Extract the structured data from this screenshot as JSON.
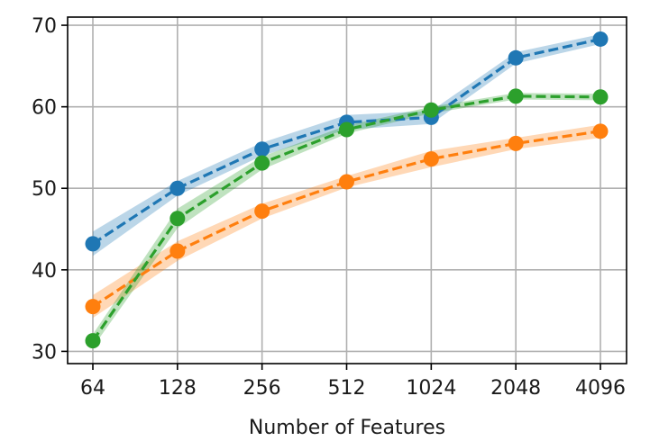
{
  "chart_data": {
    "type": "line",
    "title": "",
    "xlabel": "Number of Features",
    "ylabel": "",
    "categories": [
      "64",
      "128",
      "256",
      "512",
      "1024",
      "2048",
      "4096"
    ],
    "ylim": [
      28.5,
      71
    ],
    "yticks": [
      30,
      40,
      50,
      60,
      70
    ],
    "grid": true,
    "legend": "none",
    "series": [
      {
        "color": "#1f77b4",
        "values": [
          43.2,
          50.0,
          54.8,
          58.1,
          58.7,
          66.0,
          68.3
        ],
        "band": [
          1.5,
          0.9,
          0.8,
          0.9,
          0.8,
          0.7,
          0.6
        ]
      },
      {
        "color": "#ff7f0e",
        "values": [
          35.5,
          42.3,
          47.2,
          50.8,
          53.6,
          55.5,
          57.0
        ],
        "band": [
          1.4,
          1.2,
          0.9,
          0.7,
          1.0,
          0.7,
          0.8
        ]
      },
      {
        "color": "#2ca02c",
        "values": [
          31.3,
          46.3,
          53.1,
          57.2,
          59.6,
          61.3,
          61.2
        ],
        "band": [
          0.8,
          1.2,
          0.8,
          0.5,
          0.4,
          0.4,
          0.4
        ]
      }
    ]
  }
}
